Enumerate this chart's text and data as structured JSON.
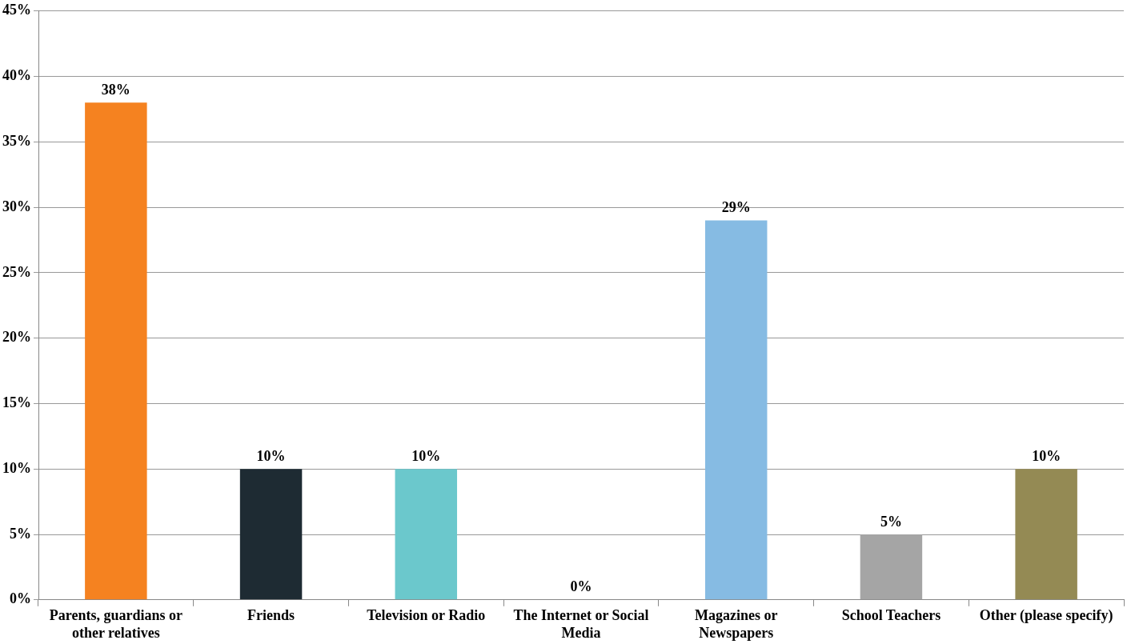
{
  "chart_data": {
    "type": "bar",
    "categories": [
      "Parents, guardians or other relatives",
      "Friends",
      "Television or Radio",
      "The Internet or Social Media",
      "Magazines or Newspapers",
      "School Teachers",
      "Other (please specify)"
    ],
    "values": [
      38,
      10,
      10,
      0,
      29,
      5,
      10
    ],
    "value_labels": [
      "38%",
      "10%",
      "10%",
      "0%",
      "29%",
      "5%",
      "10%"
    ],
    "colors": [
      "#f58220",
      "#1e2b33",
      "#6bc8cc",
      "#86bbe3",
      "#86bbe3",
      "#a5a5a5",
      "#948a54"
    ],
    "ylim": [
      0,
      45
    ],
    "yticks": [
      {
        "value": 0,
        "label": "0%"
      },
      {
        "value": 5,
        "label": "5%"
      },
      {
        "value": 10,
        "label": "10%"
      },
      {
        "value": 15,
        "label": "15%"
      },
      {
        "value": 20,
        "label": "20%"
      },
      {
        "value": 25,
        "label": "25%"
      },
      {
        "value": 30,
        "label": "30%"
      },
      {
        "value": 35,
        "label": "35%"
      },
      {
        "value": 40,
        "label": "40%"
      },
      {
        "value": 45,
        "label": "45%"
      }
    ],
    "grid": "y",
    "legend": false
  }
}
